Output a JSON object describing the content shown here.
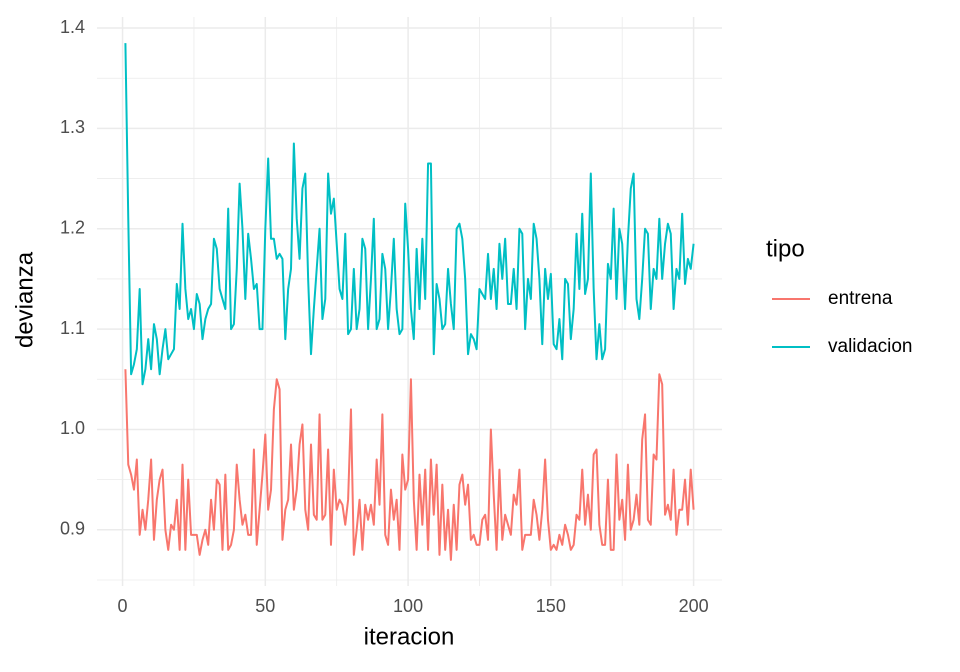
{
  "chart_data": {
    "type": "line",
    "x_label": "iteracion",
    "y_label": "devianza",
    "legend_title": "tipo",
    "legend_position": "right",
    "grid": true,
    "x": [
      1,
      2,
      3,
      4,
      5,
      6,
      7,
      8,
      9,
      10,
      11,
      12,
      13,
      14,
      15,
      16,
      17,
      18,
      19,
      20,
      21,
      22,
      23,
      24,
      25,
      26,
      27,
      28,
      29,
      30,
      31,
      32,
      33,
      34,
      35,
      36,
      37,
      38,
      39,
      40,
      41,
      42,
      43,
      44,
      45,
      46,
      47,
      48,
      49,
      50,
      51,
      52,
      53,
      54,
      55,
      56,
      57,
      58,
      59,
      60,
      61,
      62,
      63,
      64,
      65,
      66,
      67,
      68,
      69,
      70,
      71,
      72,
      73,
      74,
      75,
      76,
      77,
      78,
      79,
      80,
      81,
      82,
      83,
      84,
      85,
      86,
      87,
      88,
      89,
      90,
      91,
      92,
      93,
      94,
      95,
      96,
      97,
      98,
      99,
      100,
      101,
      102,
      103,
      104,
      105,
      106,
      107,
      108,
      109,
      110,
      111,
      112,
      113,
      114,
      115,
      116,
      117,
      118,
      119,
      120,
      121,
      122,
      123,
      124,
      125,
      126,
      127,
      128,
      129,
      130,
      131,
      132,
      133,
      134,
      135,
      136,
      137,
      138,
      139,
      140,
      141,
      142,
      143,
      144,
      145,
      146,
      147,
      148,
      149,
      150,
      151,
      152,
      153,
      154,
      155,
      156,
      157,
      158,
      159,
      160,
      161,
      162,
      163,
      164,
      165,
      166,
      167,
      168,
      169,
      170,
      171,
      172,
      173,
      174,
      175,
      176,
      177,
      178,
      179,
      180,
      181,
      182,
      183,
      184,
      185,
      186,
      187,
      188,
      189,
      190,
      191,
      192,
      193,
      194,
      195,
      196,
      197,
      198,
      199,
      200
    ],
    "series": [
      {
        "name": "entrena",
        "color": "#F8766D",
        "values": [
          1.06,
          0.965,
          0.955,
          0.94,
          0.97,
          0.895,
          0.92,
          0.9,
          0.93,
          0.97,
          0.89,
          0.93,
          0.95,
          0.96,
          0.9,
          0.88,
          0.905,
          0.9,
          0.93,
          0.88,
          0.965,
          0.88,
          0.95,
          0.895,
          0.895,
          0.895,
          0.875,
          0.89,
          0.9,
          0.885,
          0.93,
          0.9,
          0.95,
          0.945,
          0.88,
          0.955,
          0.88,
          0.885,
          0.9,
          0.965,
          0.93,
          0.905,
          0.915,
          0.895,
          0.895,
          0.98,
          0.885,
          0.92,
          0.955,
          0.995,
          0.92,
          0.94,
          1.02,
          1.05,
          1.04,
          0.89,
          0.92,
          0.93,
          0.985,
          0.92,
          0.94,
          0.985,
          1.005,
          0.92,
          0.9,
          0.985,
          0.915,
          0.91,
          1.015,
          0.91,
          0.915,
          0.98,
          0.885,
          0.96,
          0.92,
          0.93,
          0.925,
          0.905,
          0.93,
          1.02,
          0.875,
          0.9,
          0.93,
          0.88,
          0.925,
          0.91,
          0.925,
          0.905,
          0.97,
          0.925,
          1.015,
          0.895,
          0.885,
          0.94,
          0.91,
          0.93,
          0.88,
          0.975,
          0.94,
          0.95,
          1.05,
          0.93,
          0.88,
          0.955,
          0.905,
          0.96,
          0.88,
          0.97,
          0.915,
          0.965,
          0.875,
          0.945,
          0.88,
          0.92,
          0.87,
          0.925,
          0.88,
          0.945,
          0.955,
          0.925,
          0.945,
          0.89,
          0.895,
          0.885,
          0.885,
          0.91,
          0.915,
          0.89,
          1.0,
          0.935,
          0.88,
          0.96,
          0.89,
          0.915,
          0.905,
          0.895,
          0.935,
          0.925,
          0.96,
          0.88,
          0.895,
          0.895,
          0.895,
          0.93,
          0.915,
          0.89,
          0.92,
          0.97,
          0.91,
          0.88,
          0.885,
          0.88,
          0.895,
          0.885,
          0.905,
          0.895,
          0.88,
          0.885,
          0.915,
          0.91,
          0.96,
          0.905,
          0.935,
          0.9,
          0.975,
          0.98,
          0.905,
          0.885,
          0.885,
          0.95,
          0.88,
          0.88,
          0.975,
          0.91,
          0.93,
          0.89,
          0.965,
          0.9,
          0.91,
          0.935,
          0.905,
          0.99,
          1.015,
          0.91,
          0.905,
          0.975,
          0.97,
          1.055,
          1.045,
          0.915,
          0.925,
          0.91,
          0.96,
          0.895,
          0.92,
          0.92,
          0.95,
          0.905,
          0.96,
          0.92
        ]
      },
      {
        "name": "validacion",
        "color": "#00BFC4",
        "values": [
          1.385,
          1.21,
          1.055,
          1.065,
          1.08,
          1.14,
          1.045,
          1.06,
          1.09,
          1.06,
          1.105,
          1.09,
          1.055,
          1.08,
          1.1,
          1.07,
          1.075,
          1.08,
          1.145,
          1.12,
          1.205,
          1.14,
          1.11,
          1.12,
          1.1,
          1.135,
          1.125,
          1.09,
          1.11,
          1.12,
          1.125,
          1.19,
          1.18,
          1.14,
          1.13,
          1.12,
          1.22,
          1.1,
          1.105,
          1.16,
          1.245,
          1.2,
          1.13,
          1.195,
          1.17,
          1.14,
          1.145,
          1.1,
          1.1,
          1.2,
          1.27,
          1.19,
          1.19,
          1.17,
          1.175,
          1.17,
          1.09,
          1.14,
          1.16,
          1.285,
          1.21,
          1.17,
          1.24,
          1.255,
          1.15,
          1.075,
          1.12,
          1.16,
          1.2,
          1.11,
          1.13,
          1.255,
          1.215,
          1.23,
          1.185,
          1.14,
          1.13,
          1.195,
          1.095,
          1.1,
          1.16,
          1.1,
          1.12,
          1.19,
          1.18,
          1.1,
          1.15,
          1.21,
          1.1,
          1.11,
          1.175,
          1.16,
          1.1,
          1.14,
          1.19,
          1.12,
          1.095,
          1.1,
          1.225,
          1.18,
          1.12,
          1.09,
          1.18,
          1.12,
          1.19,
          1.13,
          1.265,
          1.265,
          1.075,
          1.145,
          1.13,
          1.1,
          1.105,
          1.16,
          1.125,
          1.1,
          1.2,
          1.205,
          1.19,
          1.15,
          1.075,
          1.095,
          1.09,
          1.08,
          1.14,
          1.135,
          1.13,
          1.175,
          1.13,
          1.16,
          1.12,
          1.185,
          1.15,
          1.19,
          1.125,
          1.125,
          1.16,
          1.12,
          1.2,
          1.195,
          1.1,
          1.15,
          1.13,
          1.205,
          1.19,
          1.15,
          1.085,
          1.16,
          1.13,
          1.155,
          1.085,
          1.08,
          1.11,
          1.07,
          1.15,
          1.145,
          1.09,
          1.12,
          1.195,
          1.14,
          1.215,
          1.135,
          1.15,
          1.255,
          1.14,
          1.07,
          1.105,
          1.07,
          1.08,
          1.165,
          1.15,
          1.22,
          1.13,
          1.2,
          1.185,
          1.12,
          1.19,
          1.24,
          1.255,
          1.13,
          1.11,
          1.15,
          1.2,
          1.195,
          1.12,
          1.16,
          1.15,
          1.21,
          1.15,
          1.185,
          1.205,
          1.195,
          1.12,
          1.16,
          1.15,
          1.215,
          1.145,
          1.17,
          1.16,
          1.185
        ]
      }
    ],
    "xlim": [
      -8.95,
      209.95
    ],
    "xticks": [
      0,
      50,
      100,
      150,
      200
    ],
    "x_minor_ticks": [
      25,
      75,
      125,
      175
    ],
    "ylim": [
      0.844,
      1.411
    ],
    "yticks": [
      0.9,
      {
        "value": 1,
        "label": "1.0"
      },
      1.1,
      1.2,
      1.3,
      1.4
    ],
    "y_minor_ticks": [
      0.85,
      0.95,
      1.05,
      1.15,
      1.25,
      1.35
    ]
  }
}
